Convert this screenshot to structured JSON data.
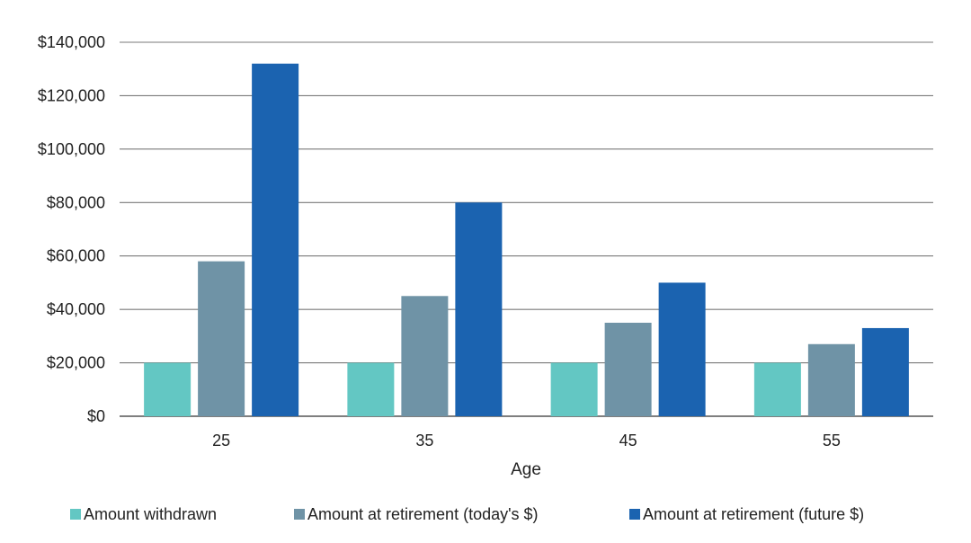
{
  "chart_data": {
    "type": "bar",
    "title": "",
    "xlabel": "Age",
    "ylabel": "",
    "categories": [
      "25",
      "35",
      "45",
      "55"
    ],
    "ylim": [
      0,
      140000
    ],
    "y_ticks": [
      0,
      20000,
      40000,
      60000,
      80000,
      100000,
      120000,
      140000
    ],
    "y_tick_labels": [
      "$0",
      "$20,000",
      "$40,000",
      "$60,000",
      "$80,000",
      "$100,000",
      "$120,000",
      "$140,000"
    ],
    "grid": true,
    "legend_position": "bottom",
    "series": [
      {
        "name": "Amount withdrawn",
        "color": "#63c7c3",
        "values": [
          20000,
          20000,
          20000,
          20000
        ]
      },
      {
        "name": "Amount at retirement (today's $)",
        "color": "#6f93a6",
        "values": [
          58000,
          45000,
          35000,
          27000
        ]
      },
      {
        "name": "Amount at retirement (future $)",
        "color": "#1b63b0",
        "values": [
          132000,
          80000,
          50000,
          33000
        ]
      }
    ]
  }
}
